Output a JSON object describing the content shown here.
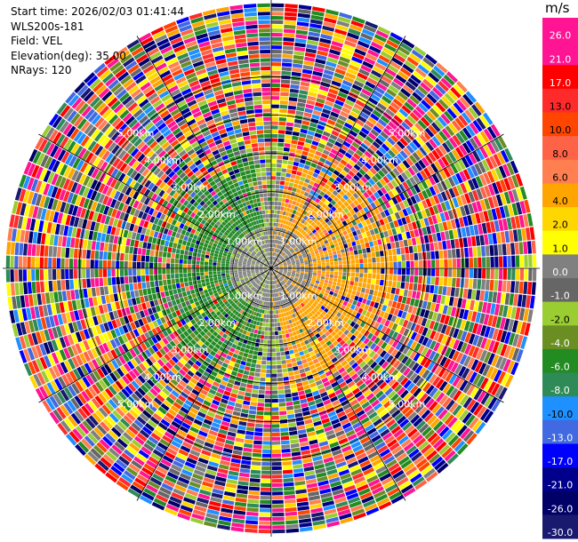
{
  "info": {
    "start_time": "Start time: 2026/02/03 01:41:44",
    "station": "WLS200s-181",
    "field": "Field: VEL",
    "elevation": "Elevation(deg): 35.00",
    "nrays": "NRays: 120"
  },
  "colorbar": {
    "unit": "m/s",
    "ticks": [
      "26.0",
      "21.0",
      "17.0",
      "13.0",
      "10.0",
      "8.0",
      "6.0",
      "4.0",
      "2.0",
      "1.0",
      "0.0",
      "-1.0",
      "-2.0",
      "-4.0",
      "-6.0",
      "-8.0",
      "-10.0",
      "-13.0",
      "-17.0",
      "-21.0",
      "-26.0",
      "-30.0"
    ],
    "colors": [
      "#ff1493",
      "#ff1493",
      "#ff0000",
      "#ff2a2a",
      "#ff4500",
      "#ff6347",
      "#ff7f50",
      "#ffa500",
      "#ffd700",
      "#ffff00",
      "#808080",
      "#666666",
      "#9acd32",
      "#6b8e23",
      "#228b22",
      "#2e8b57",
      "#1e90ff",
      "#4169e1",
      "#0000ff",
      "#00008b",
      "#000066",
      "#191970"
    ]
  },
  "chart_data": {
    "type": "heatmap",
    "title": "",
    "field": "VEL",
    "unit": "m/s",
    "nrays": 120,
    "elevation_deg": 35.0,
    "range_ring_labels_km": [
      "1.00km",
      "2.00km",
      "3.00km",
      "4.00km",
      "5.00km"
    ],
    "range_rings_km": [
      1,
      2,
      3,
      4,
      5
    ],
    "max_range_km": 7.0,
    "color_levels": [
      26.0,
      21.0,
      17.0,
      13.0,
      10.0,
      8.0,
      6.0,
      4.0,
      2.0,
      1.0,
      0.0,
      -1.0,
      -2.0,
      -4.0,
      -6.0,
      -8.0,
      -10.0,
      -13.0,
      -17.0,
      -21.0,
      -26.0,
      -30.0
    ],
    "pattern": {
      "near_range_km": 1.0,
      "near_value": 0.0,
      "west_sector_value": -6.0,
      "east_sector_value": 4.0,
      "outer_noise_from_km": 3.2
    }
  }
}
